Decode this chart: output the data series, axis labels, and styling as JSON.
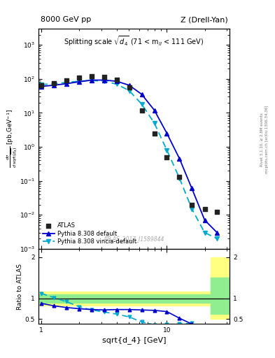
{
  "title_left": "8000 GeV pp",
  "title_right": "Z (Drell-Yan)",
  "plot_title": "Splitting scale $\\sqrt{d_4}$ (71 < m$_{ll}$ < 111 GeV)",
  "ylabel_main": "d$\\sigma$/dsqrt($d_4$) [pb,GeV$^{-1}$]",
  "ylabel_ratio": "Ratio to ATLAS",
  "xlabel": "sqrt{d_4} [GeV]",
  "watermark": "ATLAS_2017_I1589844",
  "right_label_1": "Rivet 3.1.10, ≥ 2.8M events",
  "right_label_2": "mcplots.cern.ch [arXiv:1306.34.36]",
  "atlas_x": [
    1.0,
    1.26,
    1.58,
    2.0,
    2.51,
    3.16,
    3.98,
    5.01,
    6.31,
    7.94,
    10.0,
    12.6,
    15.8,
    20.0,
    25.1
  ],
  "atlas_y": [
    65.0,
    75.0,
    90.0,
    110.0,
    120.0,
    115.0,
    95.0,
    55.0,
    12.0,
    2.5,
    0.5,
    0.13,
    0.02,
    0.015,
    0.012
  ],
  "pythia_default_x": [
    1.0,
    1.26,
    1.58,
    2.0,
    2.51,
    3.16,
    3.98,
    5.01,
    6.31,
    7.94,
    10.0,
    12.6,
    15.8,
    20.0,
    25.1
  ],
  "pythia_default_y": [
    60.0,
    65.0,
    72.0,
    82.0,
    92.0,
    92.0,
    85.0,
    65.0,
    35.0,
    12.0,
    2.5,
    0.45,
    0.06,
    0.007,
    0.003
  ],
  "pythia_vincia_x": [
    1.0,
    1.26,
    1.58,
    2.0,
    2.51,
    3.16,
    3.98,
    5.01,
    6.31,
    7.94,
    10.0,
    12.6,
    15.8,
    20.0,
    25.1
  ],
  "pythia_vincia_y": [
    68.0,
    72.0,
    78.0,
    85.0,
    90.0,
    85.0,
    70.0,
    45.0,
    18.0,
    5.0,
    0.8,
    0.12,
    0.015,
    0.003,
    0.002
  ],
  "ratio_default_x": [
    1.0,
    1.26,
    1.58,
    2.0,
    2.51,
    3.16,
    3.98,
    5.01,
    6.31,
    7.94,
    10.0,
    12.6,
    15.8,
    20.0,
    25.1
  ],
  "ratio_default_y": [
    0.88,
    0.82,
    0.78,
    0.75,
    0.73,
    0.72,
    0.73,
    0.73,
    0.72,
    0.71,
    0.68,
    0.52,
    0.38,
    0.3,
    0.3
  ],
  "ratio_vincia_x": [
    1.0,
    1.26,
    1.58,
    2.0,
    2.51,
    3.16,
    3.98,
    5.01,
    6.31,
    7.94,
    10.0,
    12.6,
    15.8
  ],
  "ratio_vincia_y": [
    1.12,
    1.02,
    0.92,
    0.8,
    0.72,
    0.67,
    0.62,
    0.55,
    0.43,
    0.36,
    0.37,
    0.38,
    0.4
  ],
  "green_band_ylow": 0.9,
  "green_band_yhigh": 1.1,
  "yellow_band_ylow": 0.83,
  "yellow_band_yhigh": 1.17,
  "last_bin_green_ylow": 0.62,
  "last_bin_green_yhigh": 1.5,
  "last_bin_yellow_ylow": 0.5,
  "last_bin_yellow_yhigh": 2.0,
  "last_bin_x_start": 22.4,
  "color_atlas": "#222222",
  "color_pythia_default": "#0000cc",
  "color_pythia_vincia": "#00aacc",
  "color_green": "#90ee90",
  "color_yellow": "#ffff80",
  "xlim": [
    0.95,
    31.6
  ],
  "ylim_main": [
    0.001,
    3000.0
  ],
  "ylim_ratio": [
    0.38,
    2.2
  ],
  "ratio_yticks": [
    0.5,
    1.0,
    2.0
  ]
}
